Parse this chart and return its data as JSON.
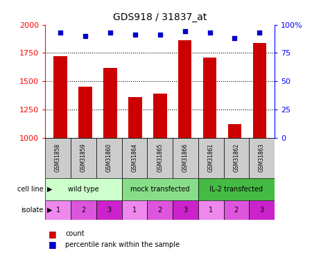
{
  "title": "GDS918 / 31837_at",
  "samples": [
    "GSM31858",
    "GSM31859",
    "GSM31860",
    "GSM31864",
    "GSM31865",
    "GSM31866",
    "GSM31861",
    "GSM31862",
    "GSM31863"
  ],
  "counts": [
    1720,
    1450,
    1620,
    1360,
    1390,
    1860,
    1710,
    1120,
    1840
  ],
  "percentile_ranks": [
    93,
    90,
    93,
    91,
    91,
    94,
    93,
    88,
    93
  ],
  "ylim_left": [
    1000,
    2000
  ],
  "ylim_right": [
    0,
    100
  ],
  "yticks_left": [
    1000,
    1250,
    1500,
    1750,
    2000
  ],
  "yticks_right": [
    0,
    25,
    50,
    75,
    100
  ],
  "bar_color": "#cc0000",
  "scatter_color": "#0000cc",
  "cell_line_groups": [
    {
      "label": "wild type",
      "start": 0,
      "end": 3,
      "color": "#ccffcc"
    },
    {
      "label": "mock transfected",
      "start": 3,
      "end": 6,
      "color": "#88dd88"
    },
    {
      "label": "IL-2 transfected",
      "start": 6,
      "end": 9,
      "color": "#44bb44"
    }
  ],
  "isolate_colors_map": {
    "1": "#ee88ee",
    "2": "#dd55dd",
    "3": "#cc22cc"
  },
  "isolate_labels": [
    1,
    2,
    3,
    1,
    2,
    3,
    1,
    2,
    3
  ],
  "legend_count_label": "count",
  "legend_percentile_label": "percentile rank within the sample",
  "sample_box_color": "#cccccc",
  "bg_color": "#ffffff"
}
